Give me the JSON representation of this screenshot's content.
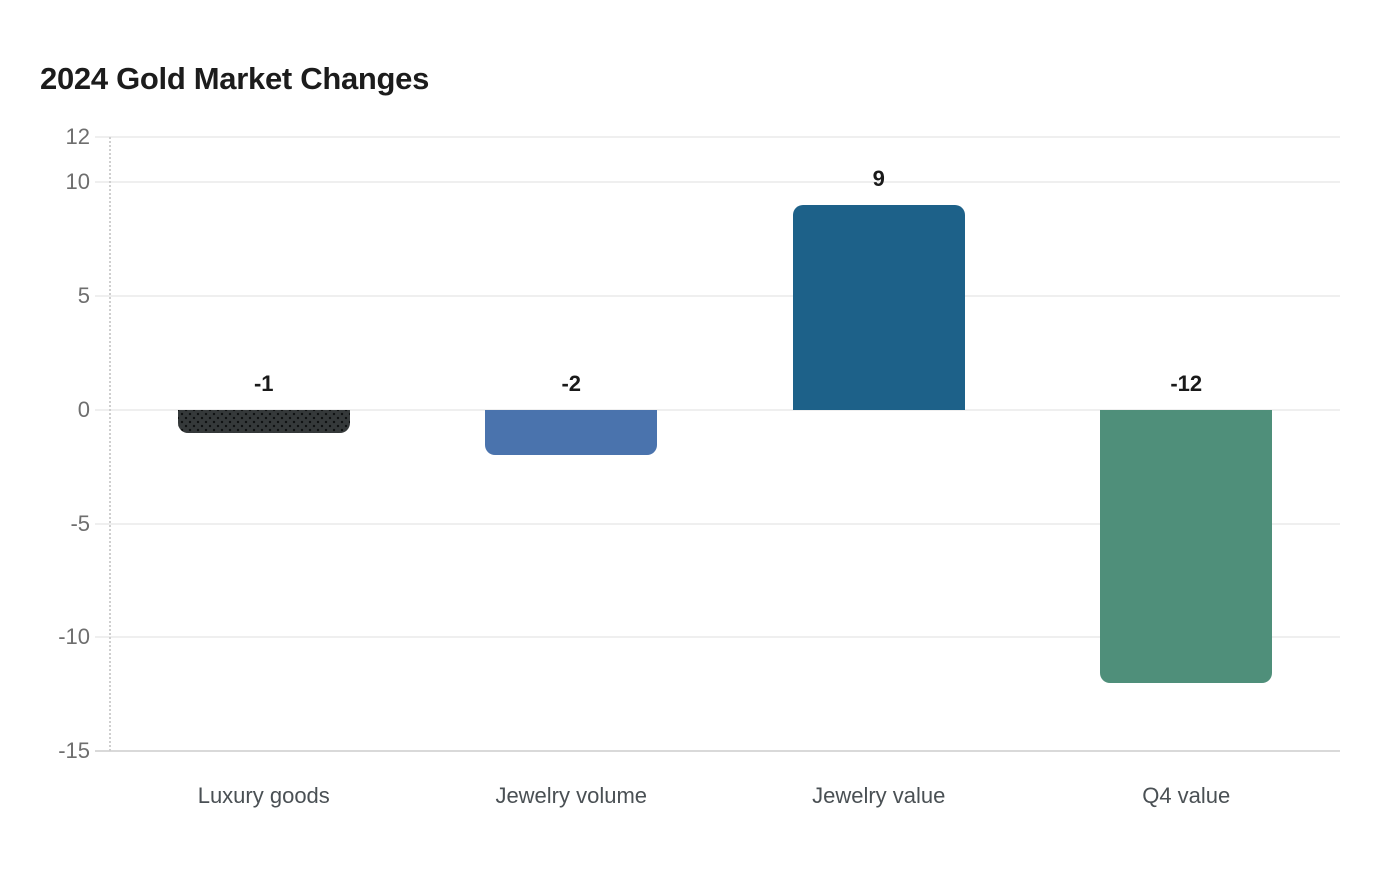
{
  "page": {
    "title": "2024 Gold Market Changes"
  },
  "chart_data": {
    "type": "bar",
    "title": "2024 Gold Market Changes",
    "categories": [
      "Luxury goods",
      "Jewelry volume",
      "Jewelry value",
      "Q4 value"
    ],
    "values": [
      -1,
      -2,
      9,
      -12
    ],
    "value_labels": [
      "-1",
      "-2",
      "9",
      "-12"
    ],
    "bar_colors": [
      "#35393a",
      "#4a73ad",
      "#1d6189",
      "#4f8f7a"
    ],
    "bar_patterns": [
      "dots",
      "solid",
      "solid",
      "solid"
    ],
    "xlabel": "",
    "ylabel": "",
    "ylim": [
      -15,
      12
    ],
    "yticks": [
      12,
      10,
      5,
      0,
      -5,
      -10,
      -15
    ],
    "baseline": 0,
    "grid": "horizontal",
    "legend": "none"
  },
  "colors": {
    "background": "#ffffff",
    "title": "#1c1c1c",
    "axis_label": "#6e6e6e",
    "category_label": "#4a5054",
    "value_label": "#1a1a1a",
    "gridline": "#efefef",
    "bottom_gridline": "#d9d9d9",
    "axis_dotted": "#cfcfcf",
    "pattern_dot": "#0e1011"
  }
}
